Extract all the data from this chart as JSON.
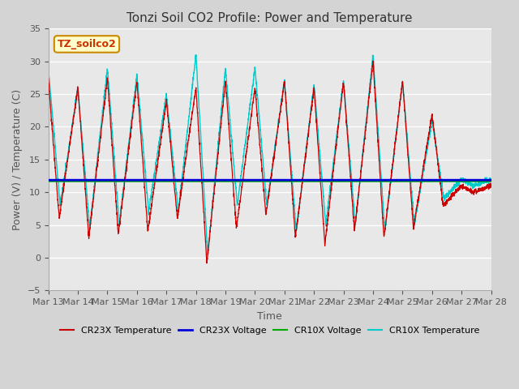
{
  "title": "Tonzi Soil CO2 Profile: Power and Temperature",
  "xlabel": "Time",
  "ylabel": "Power (V) / Temperature (C)",
  "ylim": [
    -5,
    35
  ],
  "yticks": [
    -5,
    0,
    5,
    10,
    15,
    20,
    25,
    30,
    35
  ],
  "plot_bg_color": "#e8e8e8",
  "fig_bg_color": "#d4d4d4",
  "cr23x_temp_color": "#cc0000",
  "cr23x_volt_color": "#0000dd",
  "cr10x_volt_color": "#00aa00",
  "cr10x_temp_color": "#00cccc",
  "cr23x_volt_value": 11.85,
  "cr10x_volt_value": 11.75,
  "legend_entries": [
    "CR23X Temperature",
    "CR23X Voltage",
    "CR10X Voltage",
    "CR10X Temperature"
  ],
  "annotation_text": "TZ_soilco2",
  "x_tick_labels": [
    "Mar 13",
    "Mar 14",
    "Mar 15",
    "Mar 16",
    "Mar 17",
    "Mar 18",
    "Mar 19",
    "Mar 20",
    "Mar 21",
    "Mar 22",
    "Mar 23",
    "Mar 24",
    "Mar 25",
    "Mar 26",
    "Mar 27",
    "Mar 28"
  ]
}
